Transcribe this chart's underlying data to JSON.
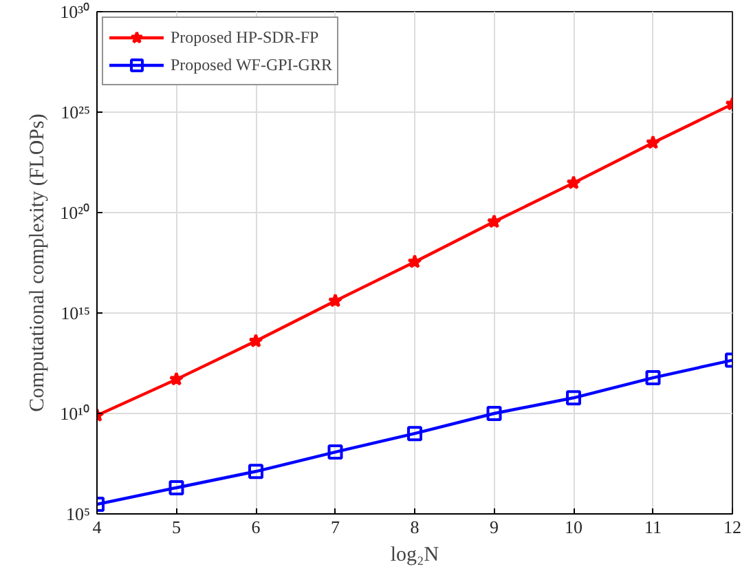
{
  "chart_data": {
    "type": "line",
    "xlabel": "log₂N",
    "ylabel": "Computational complexity (FLOPs)",
    "x": [
      4,
      5,
      6,
      7,
      8,
      9,
      10,
      11,
      12
    ],
    "series": [
      {
        "name": "Proposed HP-SDR-FP",
        "color": "#ff0000",
        "marker": "star",
        "values": [
          8000000000.0,
          500000000000.0,
          40000000000000.0,
          4000000000000000.0,
          3.5e+17,
          3.5e+19,
          3e+21,
          3e+23,
          2.5e+25
        ]
      },
      {
        "name": "Proposed WF-GPI-GRR",
        "color": "#0000ff",
        "marker": "square",
        "values": [
          300000.0,
          2000000.0,
          13000000.0,
          120000000.0,
          1000000000.0,
          10000000000.0,
          60000000000.0,
          600000000000.0,
          4500000000000.0
        ]
      }
    ],
    "log": "y",
    "xlim": [
      4,
      12
    ],
    "xticks": [
      4,
      5,
      6,
      7,
      8,
      9,
      10,
      11,
      12
    ],
    "ylim": [
      100000.0,
      1e+30
    ],
    "yticks": [
      {
        "value": 100000.0,
        "label": "10⁵"
      },
      {
        "value": 10000000000.0,
        "label": "10¹⁰"
      },
      {
        "value": 1000000000000000.0,
        "label": "10¹⁵"
      },
      {
        "value": 1e+20,
        "label": "10²⁰"
      },
      {
        "value": 1e+25,
        "label": "10²⁵"
      },
      {
        "value": 1e+30,
        "label": "10³⁰"
      }
    ],
    "grid": true,
    "legend": "top left",
    "line_style": "solid"
  }
}
